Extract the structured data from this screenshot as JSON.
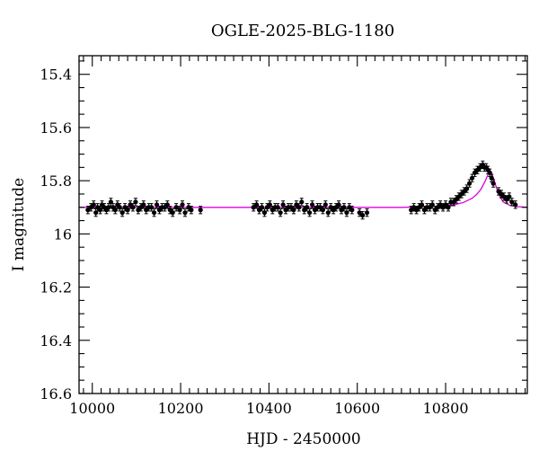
{
  "chart_data": {
    "type": "scatter",
    "title": "OGLE-2025-BLG-1180",
    "xlabel": "HJD - 2450000",
    "ylabel": "I magnitude",
    "xlim": [
      9970,
      10985
    ],
    "ylim": [
      16.6,
      15.33
    ],
    "y_inverted": true,
    "x_ticks": [
      10000,
      10200,
      10400,
      10600,
      10800
    ],
    "y_ticks": [
      15.4,
      15.6,
      15.8,
      16,
      16.2,
      16.4,
      16.6
    ],
    "x_tick_labels": [
      "10000",
      "10200",
      "10400",
      "10600",
      "10800"
    ],
    "y_tick_labels": [
      "15.4",
      "15.6",
      "15.8",
      "16",
      "16.2",
      "16.4",
      "16.6"
    ],
    "grid": false,
    "colors": {
      "data": "#000000",
      "model": "#e000e0"
    },
    "model": {
      "name": "",
      "x": [
        9970,
        10700,
        10780,
        10820,
        10840,
        10860,
        10870,
        10880,
        10890,
        10895,
        10900,
        10905,
        10910,
        10920,
        10930,
        10945,
        10960,
        10985
      ],
      "y": [
        15.9,
        15.9,
        15.896,
        15.89,
        15.882,
        15.866,
        15.852,
        15.832,
        15.8,
        15.78,
        15.765,
        15.775,
        15.8,
        15.85,
        15.88,
        15.892,
        15.897,
        15.9
      ]
    },
    "series": [
      {
        "type": "points_with_errors",
        "x": [
          9990,
          9997,
          10003,
          10008,
          10012,
          10018,
          10022,
          10027,
          10032,
          10037,
          10042,
          10047,
          10052,
          10057,
          10062,
          10068,
          10074,
          10080,
          10086,
          10092,
          10098,
          10104,
          10110,
          10116,
          10122,
          10128,
          10134,
          10140,
          10146,
          10152,
          10158,
          10164,
          10170,
          10176,
          10182,
          10190,
          10198,
          10204,
          10210,
          10218,
          10224,
          10245,
          10365,
          10372,
          10378,
          10384,
          10390,
          10396,
          10402,
          10408,
          10414,
          10420,
          10426,
          10432,
          10438,
          10444,
          10450,
          10456,
          10462,
          10468,
          10474,
          10480,
          10486,
          10492,
          10498,
          10504,
          10510,
          10516,
          10522,
          10528,
          10534,
          10540,
          10546,
          10552,
          10558,
          10564,
          10570,
          10576,
          10582,
          10588,
          10605,
          10612,
          10622,
          10722,
          10728,
          10734,
          10740,
          10746,
          10752,
          10758,
          10764,
          10770,
          10776,
          10782,
          10788,
          10794,
          10800,
          10806,
          10812,
          10818,
          10824,
          10830,
          10836,
          10842,
          10848,
          10854,
          10860,
          10866,
          10872,
          10878,
          10884,
          10888,
          10892,
          10896,
          10900,
          10904,
          10908,
          10920,
          10926,
          10932,
          10938,
          10944,
          10950,
          10958
        ],
        "y": [
          15.91,
          15.9,
          15.89,
          15.92,
          15.9,
          15.91,
          15.89,
          15.9,
          15.91,
          15.9,
          15.88,
          15.9,
          15.91,
          15.89,
          15.9,
          15.92,
          15.9,
          15.91,
          15.89,
          15.9,
          15.88,
          15.91,
          15.9,
          15.89,
          15.91,
          15.9,
          15.9,
          15.92,
          15.89,
          15.91,
          15.9,
          15.9,
          15.89,
          15.91,
          15.92,
          15.9,
          15.91,
          15.89,
          15.92,
          15.9,
          15.91,
          15.91,
          15.9,
          15.89,
          15.91,
          15.9,
          15.92,
          15.9,
          15.89,
          15.91,
          15.9,
          15.9,
          15.92,
          15.89,
          15.91,
          15.9,
          15.9,
          15.91,
          15.89,
          15.9,
          15.88,
          15.91,
          15.9,
          15.92,
          15.89,
          15.91,
          15.9,
          15.9,
          15.91,
          15.89,
          15.92,
          15.9,
          15.91,
          15.9,
          15.89,
          15.91,
          15.9,
          15.92,
          15.9,
          15.91,
          15.92,
          15.93,
          15.92,
          15.91,
          15.9,
          15.91,
          15.9,
          15.89,
          15.91,
          15.9,
          15.9,
          15.89,
          15.91,
          15.9,
          15.89,
          15.9,
          15.89,
          15.9,
          15.88,
          15.88,
          15.87,
          15.86,
          15.85,
          15.84,
          15.83,
          15.81,
          15.79,
          15.77,
          15.76,
          15.75,
          15.74,
          15.75,
          15.75,
          15.76,
          15.77,
          15.79,
          15.81,
          15.84,
          15.85,
          15.86,
          15.87,
          15.86,
          15.88,
          15.89
        ],
        "err": 0.014
      }
    ]
  }
}
